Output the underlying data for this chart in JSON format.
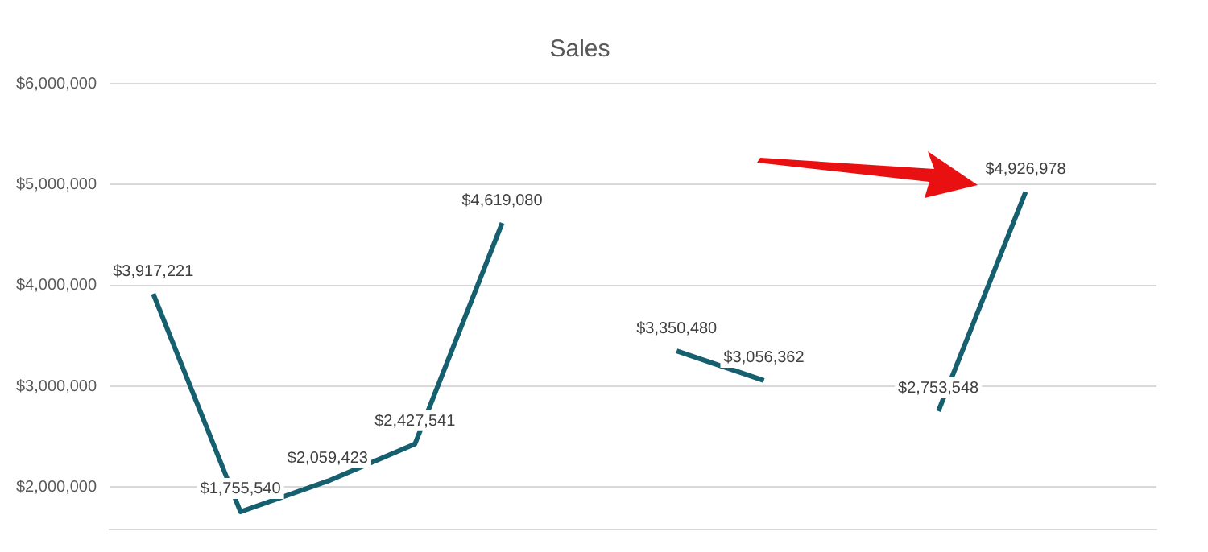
{
  "chart_data": {
    "type": "line",
    "title": "Sales",
    "categories": [
      null,
      null,
      null,
      null,
      null,
      null,
      null,
      null,
      null,
      null,
      null,
      null
    ],
    "series": [
      {
        "color": "#155f6f",
        "values": [
          3917221,
          1755540,
          2059423,
          2427541,
          4619080,
          null,
          3350480,
          3056362,
          null,
          2753548,
          4926978,
          null
        ]
      }
    ],
    "value_labels": [
      "$3,917,221",
      "$1,755,540",
      "$2,059,423",
      "$2,427,541",
      "$4,619,080",
      null,
      "$3,350,480",
      "$3,056,362",
      null,
      "$2,753,548",
      "$4,926,978",
      null
    ],
    "ylim": [
      1580000,
      6000000
    ],
    "yticks": [
      {
        "value": 2000000,
        "label": "$2,000,000"
      },
      {
        "value": 3000000,
        "label": "$3,000,000"
      },
      {
        "value": 4000000,
        "label": "$4,000,000"
      },
      {
        "value": 5000000,
        "label": "$5,000,000"
      },
      {
        "value": 6000000,
        "label": "$6,000,000"
      }
    ],
    "grid": "y",
    "tick_labels": "y",
    "legend": false,
    "marker": "none",
    "line_style": "solid"
  }
}
